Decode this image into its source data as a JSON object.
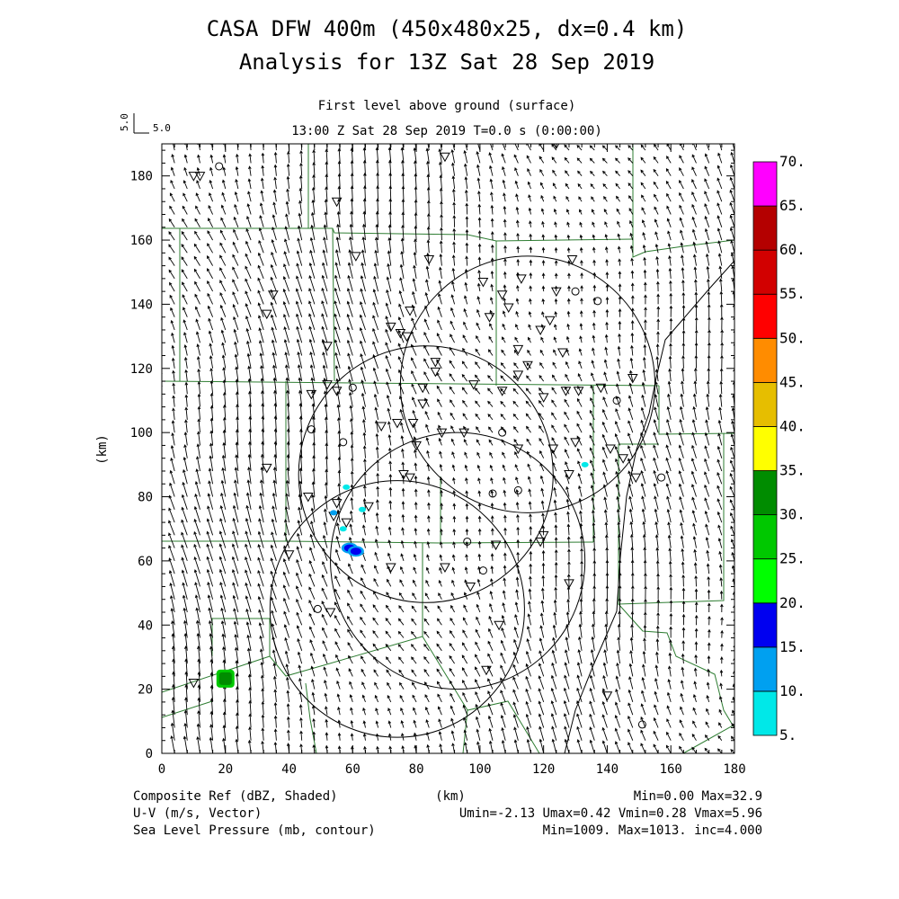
{
  "header": {
    "title_line1": "CASA DFW 400m (450x480x25, dx=0.4 km)",
    "title_line2": "Analysis for 13Z Sat 28 Sep 2019",
    "level_label": "First level above ground (surface)",
    "time_label": "13:00 Z Sat 28 Sep 2019     T=0.0 s (0:00:00)",
    "vector_scale_vertical": "5.0",
    "vector_scale_horizontal": "5.0"
  },
  "footer": {
    "left_line1": "Composite Ref (dBZ, Shaded)",
    "left_line2": "U-V (m/s, Vector)",
    "left_line3": "Sea Level Pressure (mb, contour)",
    "center_line1": "(km)",
    "right_line1": "Min=0.00 Max=32.9",
    "right_line2": "Umin=-2.13 Umax=0.42 Vmin=0.28 Vmax=5.96",
    "right_line3": "Min=1009. Max=1013. inc=4.000"
  },
  "chart_data": {
    "type": "heatmap",
    "xlabel": "",
    "ylabel": "(km)",
    "xlim": [
      0,
      180
    ],
    "ylim": [
      0,
      190
    ],
    "xticks": [
      "0",
      "20",
      "40",
      "60",
      "80",
      "100",
      "120",
      "140",
      "160",
      "180"
    ],
    "yticks": [
      "0",
      "20",
      "40",
      "60",
      "80",
      "100",
      "120",
      "140",
      "160",
      "180"
    ],
    "colorbar": {
      "levels": [
        "5.",
        "10.",
        "15.",
        "20.",
        "25.",
        "30.",
        "35.",
        "40.",
        "45.",
        "50.",
        "55.",
        "60.",
        "65.",
        "70."
      ],
      "colors": [
        "#00e8e8",
        "#00a0f0",
        "#0000f0",
        "#00ff00",
        "#00c800",
        "#008c00",
        "#ffff00",
        "#e6be00",
        "#ff8c00",
        "#ff0000",
        "#d20000",
        "#b40000",
        "#ff00ff"
      ]
    },
    "reflectivity_cells": [
      {
        "x": 20,
        "y": 23,
        "dbz": 30,
        "note": "compact echo"
      },
      {
        "x": 59,
        "y": 64,
        "dbz": 18
      },
      {
        "x": 61,
        "y": 63,
        "dbz": 15
      },
      {
        "x": 54,
        "y": 75,
        "dbz": 10
      },
      {
        "x": 57,
        "y": 70,
        "dbz": 8
      },
      {
        "x": 63,
        "y": 76,
        "dbz": 8
      },
      {
        "x": 58,
        "y": 83,
        "dbz": 6
      },
      {
        "x": 133,
        "y": 90,
        "dbz": 6
      }
    ],
    "radar_range_rings": [
      {
        "cx": 74,
        "cy": 45,
        "r": 40
      },
      {
        "cx": 93,
        "cy": 60,
        "r": 40
      },
      {
        "cx": 83,
        "cy": 87,
        "r": 40
      },
      {
        "cx": 115,
        "cy": 115,
        "r": 40
      }
    ],
    "wind_field": {
      "u_range": [
        -2.13,
        0.42
      ],
      "v_range": [
        0.28,
        5.96
      ],
      "reference_vector": 5.0,
      "stride_km": 4
    },
    "sea_level_pressure": {
      "min": 1009,
      "max": 1013,
      "inc": 4.0
    }
  }
}
